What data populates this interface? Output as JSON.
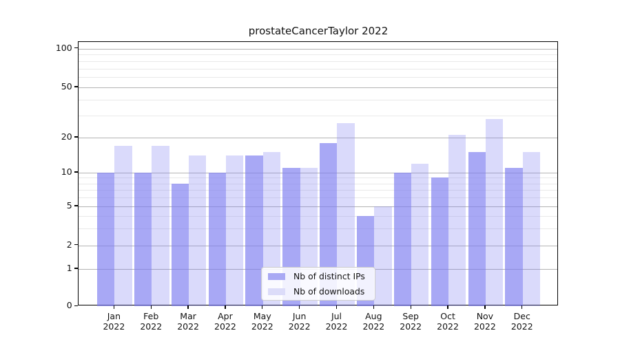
{
  "figure_title": "prostateCancerTaylor 2022",
  "chart_data": {
    "type": "bar",
    "title": "prostateCancerTaylor 2022",
    "categories": [
      "Jan",
      "Feb",
      "Mar",
      "Apr",
      "May",
      "Jun",
      "Jul",
      "Aug",
      "Sep",
      "Oct",
      "Nov",
      "Dec"
    ],
    "category_year": "2022",
    "series": [
      {
        "name": "Nb of distinct IPs",
        "values": [
          10,
          10,
          8,
          10,
          14,
          11,
          18,
          4,
          10,
          9,
          15,
          11
        ],
        "fill": "rgba(123,123,240,0.66)",
        "swatch": "#a9a9f4"
      },
      {
        "name": "Nb of downloads",
        "values": [
          17,
          17,
          14,
          14,
          15,
          11,
          26,
          5,
          12,
          21,
          28,
          15
        ],
        "fill": "rgba(123,123,240,0.28)",
        "swatch": "#dcdcf9"
      }
    ],
    "xlabel": "",
    "ylabel": "",
    "yscale": "symlog",
    "ytick_labels": [
      "0",
      "1",
      "2",
      "5",
      "10",
      "20",
      "50",
      "100"
    ],
    "yticks": [
      0,
      1,
      2,
      5,
      10,
      20,
      50,
      100
    ],
    "minor_gridlines": [
      3,
      4,
      6,
      7,
      8,
      9,
      30,
      40,
      60,
      70,
      80,
      90
    ],
    "ylim": [
      0,
      114
    ],
    "grid": true,
    "legend_position": "lower-center",
    "colors": {
      "bar_base": "#7b7bf0",
      "major_grid": "#b3b3b3",
      "minor_grid": "#e9e9e9",
      "axis": "#000000",
      "text": "#111111",
      "legend_border": "#cccccc"
    }
  }
}
